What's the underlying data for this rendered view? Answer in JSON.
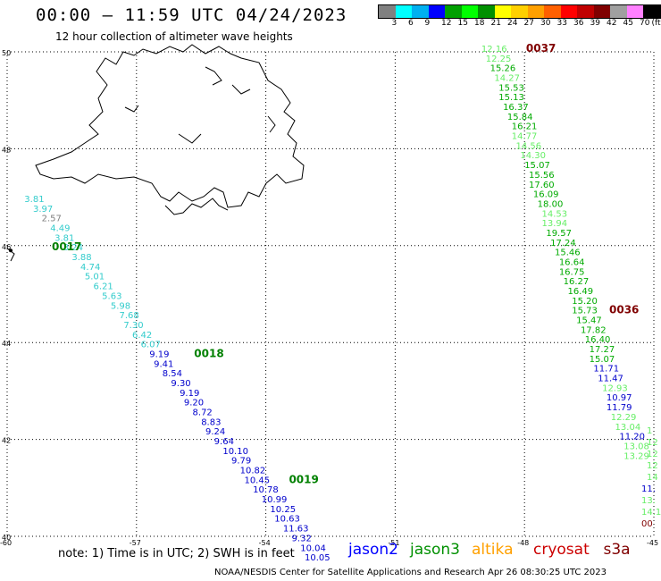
{
  "title": "00:00 – 11:59 UTC 04/24/2023",
  "subtitle": "12 hour collection of altimeter wave heights",
  "legend": {
    "unit": "(ft)",
    "items": [
      {
        "label": "",
        "color": "#808080"
      },
      {
        "label": "3",
        "color": "#00ffff"
      },
      {
        "label": "6",
        "color": "#00b0f0"
      },
      {
        "label": "9",
        "color": "#0000ff"
      },
      {
        "label": "12",
        "color": "#00a000"
      },
      {
        "label": "15",
        "color": "#00ff00"
      },
      {
        "label": "18",
        "color": "#009000"
      },
      {
        "label": "21",
        "color": "#ffff00"
      },
      {
        "label": "24",
        "color": "#ffd000"
      },
      {
        "label": "27",
        "color": "#ffa000"
      },
      {
        "label": "30",
        "color": "#ff6000"
      },
      {
        "label": "33",
        "color": "#ff0000"
      },
      {
        "label": "36",
        "color": "#c00000"
      },
      {
        "label": "39",
        "color": "#800000"
      },
      {
        "label": "42",
        "color": "#a0a0a0"
      },
      {
        "label": "45",
        "color": "#ff80ff"
      },
      {
        "label": "70",
        "color": "#000000"
      }
    ]
  },
  "axes": {
    "lat_ticks": [
      "50",
      "48",
      "46",
      "44",
      "42",
      "40"
    ],
    "lon_ticks": [
      "-60",
      "-57",
      "-54",
      "-51",
      "-48",
      "-45"
    ]
  },
  "tracks": [
    {
      "time": "0017",
      "time_color": "#008000",
      "points": [
        {
          "lat": 45.9,
          "lon": -60.0,
          "v": "",
          "c": "#000000"
        },
        {
          "lat": 46.9,
          "lon": -59.6,
          "v": "3.81",
          "c": "#33cccc"
        },
        {
          "lat": 46.7,
          "lon": -59.4,
          "v": "3.97",
          "c": "#33cccc"
        },
        {
          "lat": 46.5,
          "lon": -59.2,
          "v": "2.57",
          "c": "#808080"
        },
        {
          "lat": 46.3,
          "lon": -59.0,
          "v": "4.49",
          "c": "#33cccc"
        },
        {
          "lat": 46.1,
          "lon": -58.9,
          "v": "3.81",
          "c": "#33cccc"
        },
        {
          "lat": 45.9,
          "lon": -58.7,
          "v": "3.24",
          "c": "#33cccc"
        },
        {
          "lat": 45.7,
          "lon": -58.5,
          "v": "3.88",
          "c": "#33cccc"
        },
        {
          "lat": 45.5,
          "lon": -58.3,
          "v": "4.74",
          "c": "#33cccc"
        },
        {
          "lat": 45.3,
          "lon": -58.2,
          "v": "5.01",
          "c": "#33cccc"
        },
        {
          "lat": 45.1,
          "lon": -58.0,
          "v": "6.21",
          "c": "#33cccc"
        },
        {
          "lat": 44.9,
          "lon": -57.8,
          "v": "5.63",
          "c": "#33cccc"
        },
        {
          "lat": 44.7,
          "lon": -57.6,
          "v": "5.98",
          "c": "#33cccc"
        },
        {
          "lat": 44.5,
          "lon": -57.4,
          "v": "7.68",
          "c": "#33cccc"
        },
        {
          "lat": 44.3,
          "lon": -57.3,
          "v": "7.30",
          "c": "#33cccc"
        },
        {
          "lat": 44.1,
          "lon": -57.1,
          "v": "6.42",
          "c": "#33cccc"
        },
        {
          "lat": 43.9,
          "lon": -56.9,
          "v": "6.07",
          "c": "#33cccc"
        }
      ]
    },
    {
      "time": "0018",
      "time_color": "#008000",
      "points": [
        {
          "lat": 43.7,
          "lon": -56.7,
          "v": "9.19",
          "c": "#0000cc"
        },
        {
          "lat": 43.5,
          "lon": -56.6,
          "v": "9.41",
          "c": "#0000cc"
        },
        {
          "lat": 43.3,
          "lon": -56.4,
          "v": "8.54",
          "c": "#0000cc"
        },
        {
          "lat": 43.1,
          "lon": -56.2,
          "v": "9.30",
          "c": "#0000cc"
        },
        {
          "lat": 42.9,
          "lon": -56.0,
          "v": "9.19",
          "c": "#0000cc"
        },
        {
          "lat": 42.7,
          "lon": -55.9,
          "v": "9.20",
          "c": "#0000cc"
        },
        {
          "lat": 42.5,
          "lon": -55.7,
          "v": "8.72",
          "c": "#0000cc"
        },
        {
          "lat": 42.3,
          "lon": -55.5,
          "v": "8.83",
          "c": "#0000cc"
        },
        {
          "lat": 42.1,
          "lon": -55.4,
          "v": "9.24",
          "c": "#0000cc"
        },
        {
          "lat": 41.9,
          "lon": -55.2,
          "v": "9.64",
          "c": "#0000cc"
        },
        {
          "lat": 41.7,
          "lon": -55.0,
          "v": "10.10",
          "c": "#0000cc"
        },
        {
          "lat": 41.5,
          "lon": -54.8,
          "v": "9.79",
          "c": "#0000cc"
        },
        {
          "lat": 41.3,
          "lon": -54.6,
          "v": "10.82",
          "c": "#0000cc"
        }
      ]
    },
    {
      "time": "0019",
      "time_color": "#008000",
      "points": [
        {
          "lat": 41.1,
          "lon": -54.5,
          "v": "10.45",
          "c": "#0000cc"
        },
        {
          "lat": 40.9,
          "lon": -54.3,
          "v": "10.78",
          "c": "#0000cc"
        },
        {
          "lat": 40.7,
          "lon": -54.1,
          "v": "10.99",
          "c": "#0000cc"
        },
        {
          "lat": 40.5,
          "lon": -53.9,
          "v": "10.25",
          "c": "#0000cc"
        },
        {
          "lat": 40.3,
          "lon": -53.8,
          "v": "10.63",
          "c": "#0000cc"
        },
        {
          "lat": 40.1,
          "lon": -53.6,
          "v": "11.63",
          "c": "#0000cc"
        },
        {
          "lat": 39.9,
          "lon": -53.4,
          "v": "9.32",
          "c": "#0000cc"
        },
        {
          "lat": 39.7,
          "lon": -53.2,
          "v": "10.04",
          "c": "#0000cc"
        },
        {
          "lat": 39.5,
          "lon": -53.1,
          "v": "10.05",
          "c": "#0000cc"
        }
      ]
    },
    {
      "time": "0037",
      "time_color": "#800000",
      "points": [
        {
          "lat": 50.0,
          "lon": -49.0,
          "v": "12.16",
          "c": "#66ee66"
        },
        {
          "lat": 49.8,
          "lon": -48.9,
          "v": "12.25",
          "c": "#66ee66"
        },
        {
          "lat": 49.6,
          "lon": -48.8,
          "v": "15.26",
          "c": "#00aa00"
        },
        {
          "lat": 49.4,
          "lon": -48.7,
          "v": "14.27",
          "c": "#66ee66"
        },
        {
          "lat": 49.2,
          "lon": -48.6,
          "v": "15.53",
          "c": "#00aa00"
        },
        {
          "lat": 49.0,
          "lon": -48.6,
          "v": "15.13",
          "c": "#00aa00"
        },
        {
          "lat": 48.8,
          "lon": -48.5,
          "v": "16.37",
          "c": "#00aa00"
        },
        {
          "lat": 48.6,
          "lon": -48.4,
          "v": "15.84",
          "c": "#00aa00"
        },
        {
          "lat": 48.4,
          "lon": -48.3,
          "v": "16.21",
          "c": "#00aa00"
        },
        {
          "lat": 48.2,
          "lon": -48.3,
          "v": "14.77",
          "c": "#66ee66"
        },
        {
          "lat": 48.0,
          "lon": -48.2,
          "v": "14.56",
          "c": "#66ee66"
        },
        {
          "lat": 47.8,
          "lon": -48.1,
          "v": "14.30",
          "c": "#66ee66"
        },
        {
          "lat": 47.6,
          "lon": -48.0,
          "v": "15.07",
          "c": "#00aa00"
        },
        {
          "lat": 47.4,
          "lon": -47.9,
          "v": "15.56",
          "c": "#00aa00"
        },
        {
          "lat": 47.2,
          "lon": -47.9,
          "v": "17.60",
          "c": "#00aa00"
        },
        {
          "lat": 47.0,
          "lon": -47.8,
          "v": "16.09",
          "c": "#00aa00"
        },
        {
          "lat": 46.8,
          "lon": -47.7,
          "v": "18.00",
          "c": "#00aa00"
        },
        {
          "lat": 46.6,
          "lon": -47.6,
          "v": "14.53",
          "c": "#66ee66"
        },
        {
          "lat": 46.4,
          "lon": -47.6,
          "v": "13.94",
          "c": "#66ee66"
        },
        {
          "lat": 46.2,
          "lon": -47.5,
          "v": "19.57",
          "c": "#00aa00"
        },
        {
          "lat": 46.0,
          "lon": -47.4,
          "v": "17.24",
          "c": "#00aa00"
        },
        {
          "lat": 45.8,
          "lon": -47.3,
          "v": "15.46",
          "c": "#00aa00"
        },
        {
          "lat": 45.6,
          "lon": -47.2,
          "v": "16.64",
          "c": "#00aa00"
        },
        {
          "lat": 45.4,
          "lon": -47.2,
          "v": "16.75",
          "c": "#00aa00"
        },
        {
          "lat": 45.2,
          "lon": -47.1,
          "v": "16.27",
          "c": "#00aa00"
        },
        {
          "lat": 45.0,
          "lon": -47.0,
          "v": "16.49",
          "c": "#00aa00"
        },
        {
          "lat": 44.8,
          "lon": -46.9,
          "v": "15.20",
          "c": "#00aa00"
        }
      ]
    },
    {
      "time": "0036",
      "time_color": "#800000",
      "points": [
        {
          "lat": 44.6,
          "lon": -46.9,
          "v": "15.73",
          "c": "#00aa00"
        },
        {
          "lat": 44.4,
          "lon": -46.8,
          "v": "15.47",
          "c": "#00aa00"
        },
        {
          "lat": 44.2,
          "lon": -46.7,
          "v": "17.82",
          "c": "#00aa00"
        },
        {
          "lat": 44.0,
          "lon": -46.6,
          "v": "16.40",
          "c": "#00aa00"
        },
        {
          "lat": 43.8,
          "lon": -46.5,
          "v": "17.27",
          "c": "#00aa00"
        },
        {
          "lat": 43.6,
          "lon": -46.5,
          "v": "15.07",
          "c": "#00aa00"
        },
        {
          "lat": 43.4,
          "lon": -46.4,
          "v": "11.71",
          "c": "#0000cc"
        },
        {
          "lat": 43.2,
          "lon": -46.3,
          "v": "11.47",
          "c": "#0000cc"
        },
        {
          "lat": 43.0,
          "lon": -46.2,
          "v": "12.93",
          "c": "#66ee66"
        },
        {
          "lat": 42.8,
          "lon": -46.1,
          "v": "10.97",
          "c": "#0000cc"
        },
        {
          "lat": 42.6,
          "lon": -46.1,
          "v": "11.79",
          "c": "#0000cc"
        },
        {
          "lat": 42.4,
          "lon": -46.0,
          "v": "12.29",
          "c": "#66ee66"
        },
        {
          "lat": 42.2,
          "lon": -45.9,
          "v": "13.04",
          "c": "#66ee66"
        },
        {
          "lat": 42.0,
          "lon": -45.8,
          "v": "11.20",
          "c": "#0000cc"
        },
        {
          "lat": 41.8,
          "lon": -45.7,
          "v": "13.08",
          "c": "#66ee66"
        },
        {
          "lat": 41.6,
          "lon": -45.7,
          "v": "13.29",
          "c": "#66ee66"
        }
      ]
    }
  ],
  "edge_fragments": [
    {
      "v": "1",
      "c": "#66ee66"
    },
    {
      "v": "12",
      "c": "#66ee66"
    },
    {
      "v": "12",
      "c": "#66ee66"
    },
    {
      "v": "12",
      "c": "#66ee66"
    },
    {
      "v": "14",
      "c": "#66ee66"
    },
    {
      "v": "11.",
      "c": "#0000cc"
    },
    {
      "v": "13.",
      "c": "#66ee66"
    },
    {
      "v": "14.1",
      "c": "#66ee66"
    },
    {
      "v": "00",
      "c": "#800000"
    }
  ],
  "note": "note:  1) Time is in UTC; 2) SWH is in feet",
  "satellites": [
    {
      "name": "jason2",
      "color": "#0000ff"
    },
    {
      "name": "jason3",
      "color": "#009000"
    },
    {
      "name": "altika",
      "color": "#ffa000"
    },
    {
      "name": "cryosat",
      "color": "#cc0000"
    },
    {
      "name": "s3a",
      "color": "#800000"
    }
  ],
  "credit": "NOAA/NESDIS Center for Satellite Applications and Research     Apr 26 08:30:25 UTC 2023"
}
